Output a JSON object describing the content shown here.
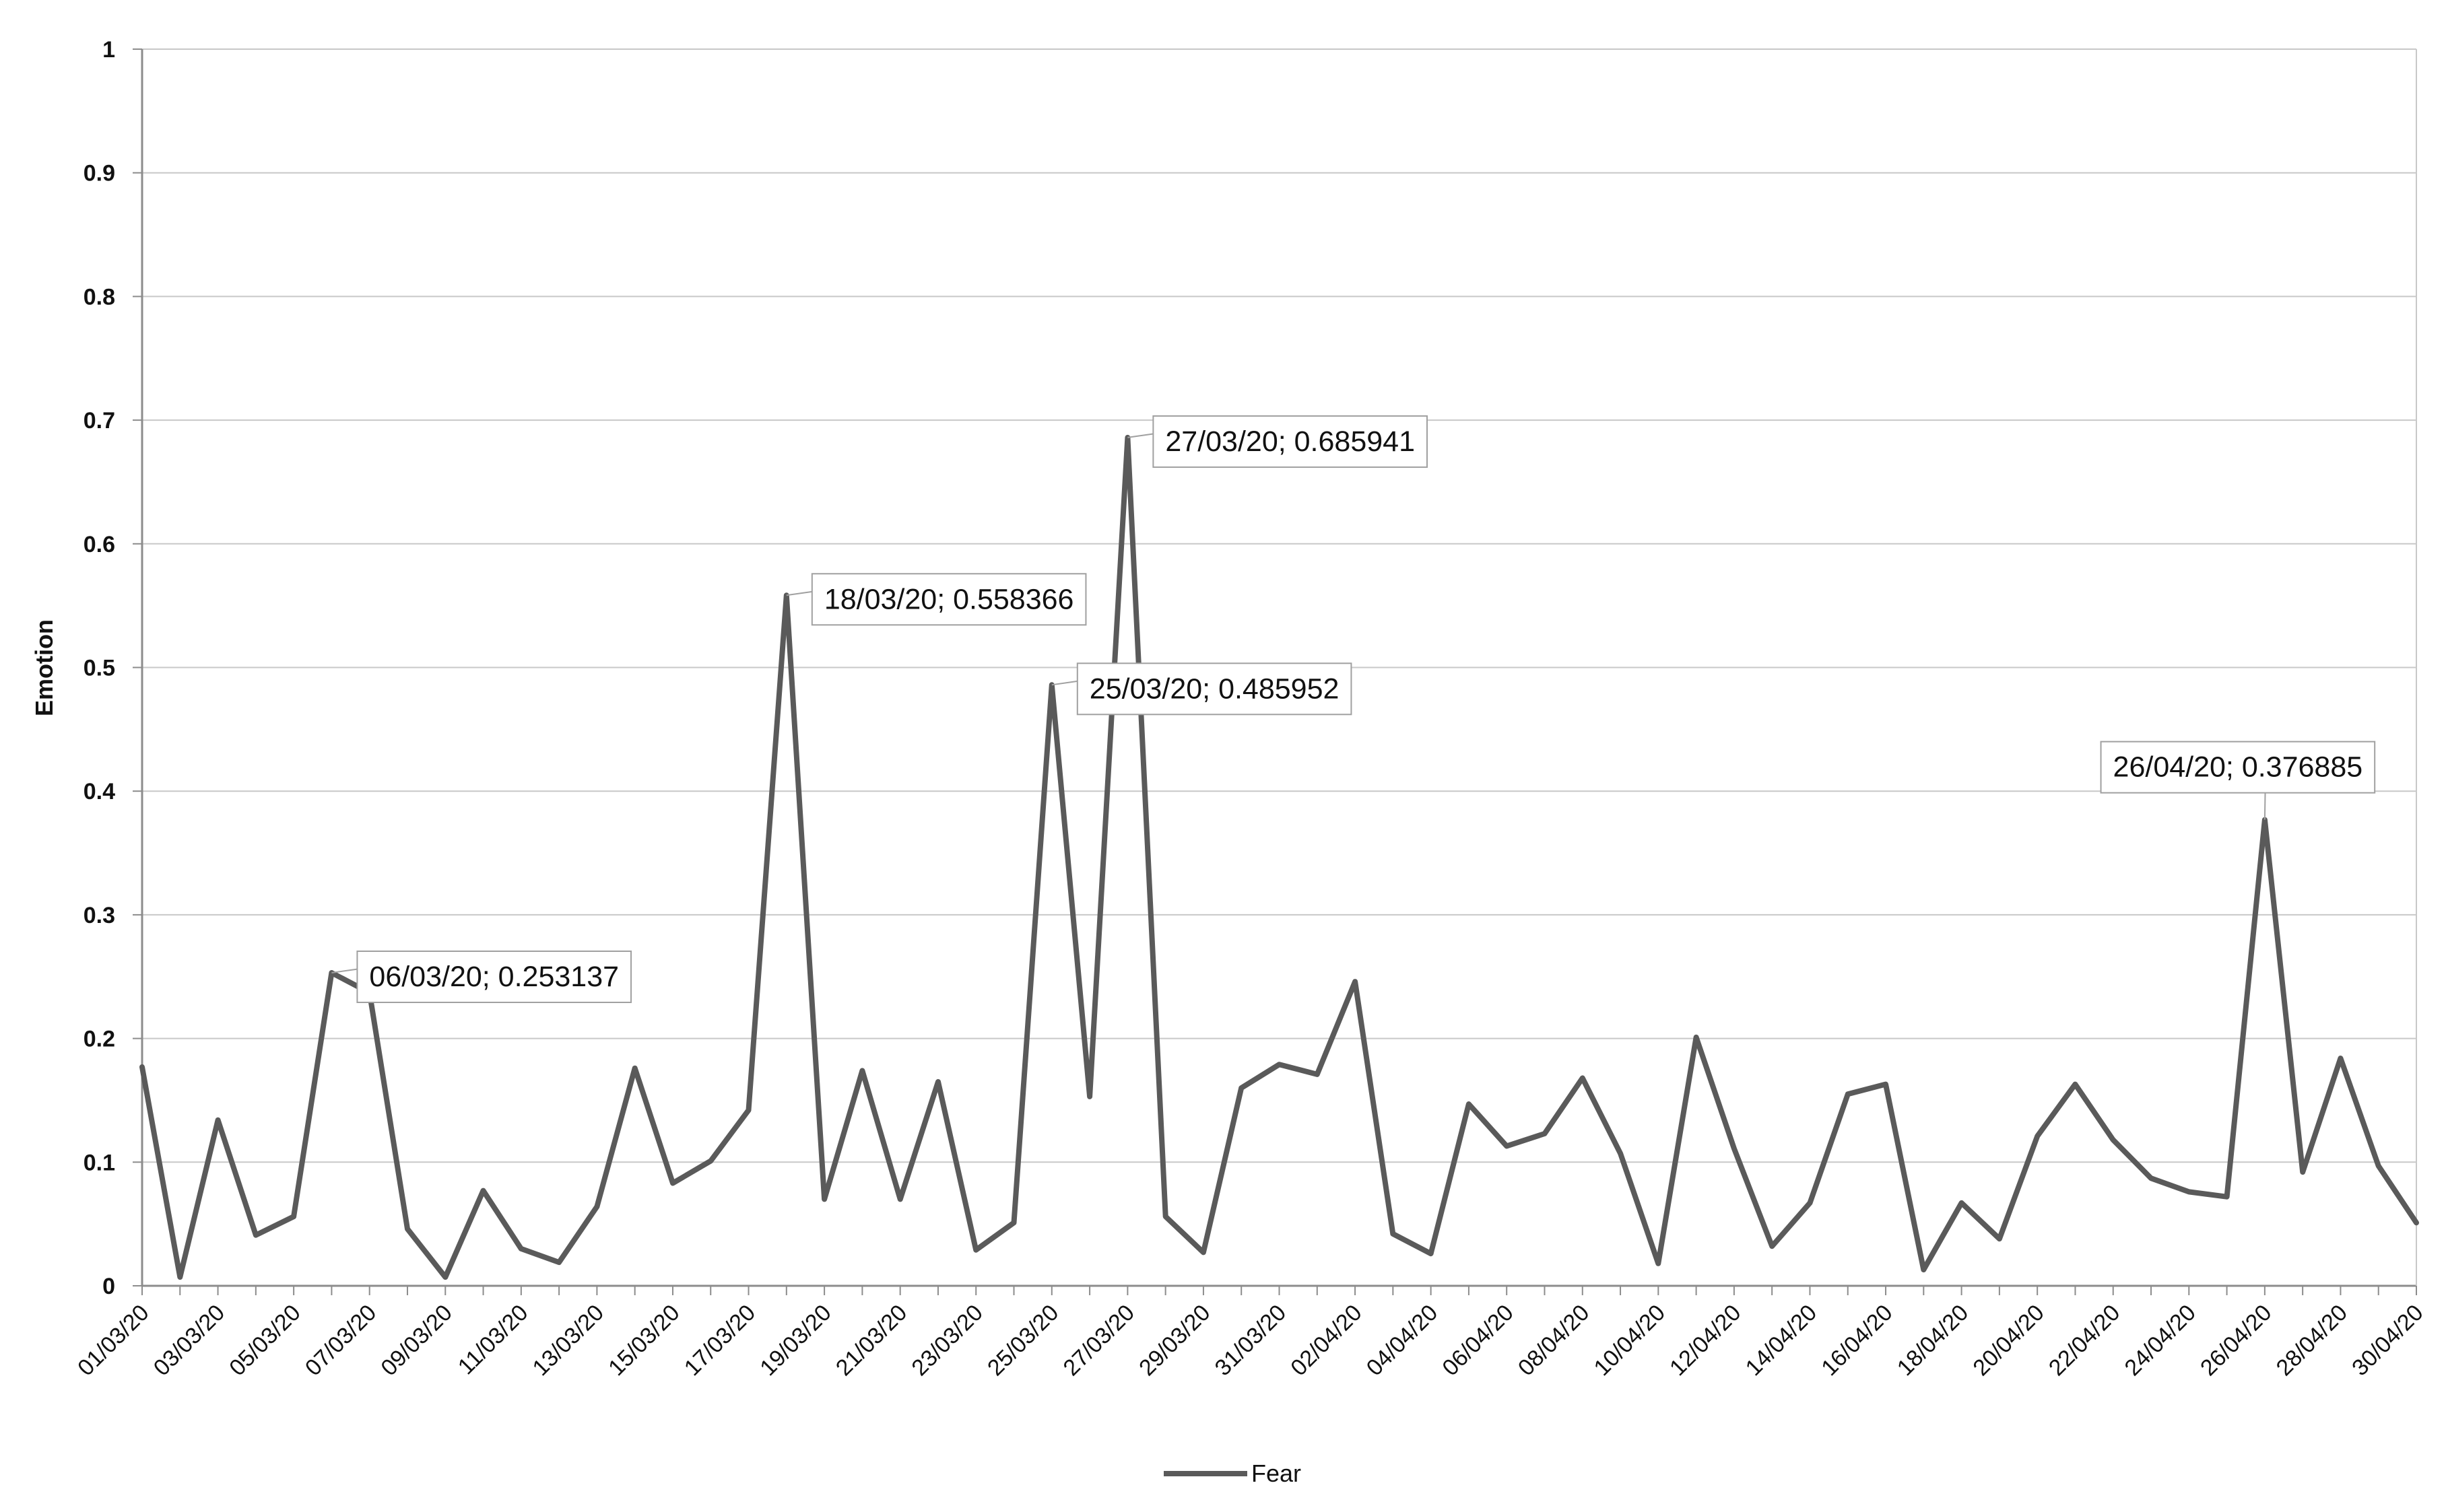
{
  "chart_data": {
    "type": "line",
    "title": "",
    "xlabel": "",
    "ylabel": "Emotion",
    "ylim": [
      0,
      1
    ],
    "y_ticks": [
      "0",
      "0.1",
      "0.2",
      "0.3",
      "0.4",
      "0.5",
      "0.6",
      "0.7",
      "0.8",
      "0.9",
      "1"
    ],
    "grid": true,
    "legend_position": "bottom",
    "x": [
      "01/03/20",
      "02/03/20",
      "03/03/20",
      "04/03/20",
      "05/03/20",
      "06/03/20",
      "07/03/20",
      "08/03/20",
      "09/03/20",
      "10/03/20",
      "11/03/20",
      "12/03/20",
      "13/03/20",
      "14/03/20",
      "15/03/20",
      "16/03/20",
      "17/03/20",
      "18/03/20",
      "19/03/20",
      "20/03/20",
      "21/03/20",
      "22/03/20",
      "23/03/20",
      "24/03/20",
      "25/03/20",
      "26/03/20",
      "27/03/20",
      "28/03/20",
      "29/03/20",
      "30/03/20",
      "31/03/20",
      "01/04/20",
      "02/04/20",
      "03/04/20",
      "04/04/20",
      "05/04/20",
      "06/04/20",
      "07/04/20",
      "08/04/20",
      "09/04/20",
      "10/04/20",
      "11/04/20",
      "12/04/20",
      "13/04/20",
      "14/04/20",
      "15/04/20",
      "16/04/20",
      "17/04/20",
      "18/04/20",
      "19/04/20",
      "20/04/20",
      "21/04/20",
      "22/04/20",
      "23/04/20",
      "24/04/20",
      "25/04/20",
      "26/04/20",
      "27/04/20",
      "28/04/20",
      "29/04/20",
      "30/04/20"
    ],
    "x_tick_labels": [
      "01/03/20",
      "03/03/20",
      "05/03/20",
      "07/03/20",
      "09/03/20",
      "11/03/20",
      "13/03/20",
      "15/03/20",
      "17/03/20",
      "19/03/20",
      "21/03/20",
      "23/03/20",
      "25/03/20",
      "27/03/20",
      "29/03/20",
      "31/03/20",
      "02/04/20",
      "04/04/20",
      "06/04/20",
      "08/04/20",
      "10/04/20",
      "12/04/20",
      "14/04/20",
      "16/04/20",
      "18/04/20",
      "20/04/20",
      "22/04/20",
      "24/04/20",
      "26/04/20",
      "28/04/20",
      "30/04/20"
    ],
    "series": [
      {
        "name": "Fear",
        "color": "#5a5a5a",
        "values": [
          0.177,
          0.007,
          0.134,
          0.041,
          0.056,
          0.253137,
          0.237,
          0.046,
          0.007,
          0.077,
          0.03,
          0.019,
          0.064,
          0.176,
          0.083,
          0.101,
          0.142,
          0.558366,
          0.07,
          0.174,
          0.07,
          0.165,
          0.029,
          0.051,
          0.485952,
          0.153,
          0.685941,
          0.056,
          0.027,
          0.16,
          0.179,
          0.171,
          0.246,
          0.042,
          0.026,
          0.147,
          0.113,
          0.123,
          0.168,
          0.107,
          0.018,
          0.201,
          0.111,
          0.032,
          0.067,
          0.155,
          0.163,
          0.013,
          0.067,
          0.038,
          0.121,
          0.163,
          0.118,
          0.087,
          0.076,
          0.072,
          0.376885,
          0.092,
          0.184,
          0.097,
          0.051
        ]
      }
    ],
    "annotations": [
      {
        "index": 5,
        "text": "06/03/20; 0.253137"
      },
      {
        "index": 17,
        "text": "18/03/20; 0.558366"
      },
      {
        "index": 24,
        "text": "25/03/20; 0.485952"
      },
      {
        "index": 26,
        "text": "27/03/20; 0.685941"
      },
      {
        "index": 56,
        "text": "26/04/20; 0.376885"
      }
    ],
    "colors": {
      "line": "#5a5a5a",
      "grid": "#c8c8c8",
      "axis": "#8c8c8c",
      "callout_border": "#a0a0a0",
      "background": "#ffffff"
    }
  }
}
